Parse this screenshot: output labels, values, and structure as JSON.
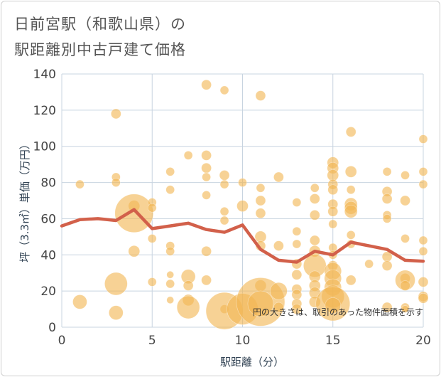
{
  "title": {
    "line1": "日前宮駅（和歌山県）の",
    "line2": "駅距離別中古戸建て価格"
  },
  "chart_data": {
    "type": "scatter",
    "xlabel": "駅距離（分）",
    "ylabel": "坪（3.3㎡）単価（万円）",
    "xlim": [
      0,
      20
    ],
    "ylim": [
      0,
      140
    ],
    "xticks": [
      0,
      5,
      10,
      15,
      20
    ],
    "yticks": [
      0,
      20,
      40,
      60,
      80,
      100,
      120,
      140
    ],
    "xtick_labels": [
      "0",
      "5",
      "10",
      "15",
      "20"
    ],
    "ytick_labels": [
      "0",
      "20",
      "40",
      "60",
      "80",
      "100",
      "120",
      "140"
    ],
    "note": "円の大きさは、取引のあった物件面積を示す",
    "colors": {
      "bubble": "#f2b654",
      "line": "#d2604a",
      "grid": "#c8d4e0"
    },
    "average_line": {
      "x": [
        0,
        1,
        2,
        3,
        4,
        5,
        6,
        7,
        8,
        9,
        10,
        11,
        12,
        13,
        14,
        15,
        16,
        17,
        18,
        19,
        20
      ],
      "y": [
        56,
        59.5,
        60,
        59,
        65,
        54.5,
        56,
        57.5,
        54,
        52.5,
        56.5,
        43,
        37,
        36,
        42,
        40,
        47,
        45,
        43,
        37,
        36.5
      ]
    },
    "points": [
      {
        "x": 1,
        "y": 79,
        "s": 6
      },
      {
        "x": 1,
        "y": 14,
        "s": 10
      },
      {
        "x": 3,
        "y": 118,
        "s": 7
      },
      {
        "x": 3,
        "y": 83,
        "s": 6
      },
      {
        "x": 3,
        "y": 80,
        "s": 6
      },
      {
        "x": 3,
        "y": 24,
        "s": 16
      },
      {
        "x": 3,
        "y": 8,
        "s": 10
      },
      {
        "x": 4,
        "y": 67,
        "s": 8
      },
      {
        "x": 4,
        "y": 63,
        "s": 27
      },
      {
        "x": 4,
        "y": 42,
        "s": 8
      },
      {
        "x": 5,
        "y": 69,
        "s": 6
      },
      {
        "x": 5,
        "y": 66,
        "s": 6
      },
      {
        "x": 5,
        "y": 49,
        "s": 6
      },
      {
        "x": 5,
        "y": 25,
        "s": 6
      },
      {
        "x": 6,
        "y": 86,
        "s": 6
      },
      {
        "x": 6,
        "y": 76,
        "s": 6
      },
      {
        "x": 6,
        "y": 45,
        "s": 6
      },
      {
        "x": 6,
        "y": 42,
        "s": 6
      },
      {
        "x": 6,
        "y": 29,
        "s": 5
      },
      {
        "x": 6,
        "y": 24,
        "s": 6
      },
      {
        "x": 6,
        "y": 15,
        "s": 5
      },
      {
        "x": 7,
        "y": 95,
        "s": 6
      },
      {
        "x": 7,
        "y": 28,
        "s": 10
      },
      {
        "x": 7,
        "y": 23,
        "s": 7
      },
      {
        "x": 7,
        "y": 15,
        "s": 8
      },
      {
        "x": 7,
        "y": 11,
        "s": 16
      },
      {
        "x": 8,
        "y": 134,
        "s": 7
      },
      {
        "x": 8,
        "y": 95,
        "s": 7
      },
      {
        "x": 8,
        "y": 88,
        "s": 7
      },
      {
        "x": 8,
        "y": 83,
        "s": 6
      },
      {
        "x": 8,
        "y": 73,
        "s": 6
      },
      {
        "x": 8,
        "y": 42,
        "s": 7
      },
      {
        "x": 8,
        "y": 26,
        "s": 7
      },
      {
        "x": 9,
        "y": 131,
        "s": 6
      },
      {
        "x": 9,
        "y": 84,
        "s": 7
      },
      {
        "x": 9,
        "y": 79,
        "s": 6
      },
      {
        "x": 9,
        "y": 64,
        "s": 6
      },
      {
        "x": 9,
        "y": 59,
        "s": 6
      },
      {
        "x": 9,
        "y": 10,
        "s": 6
      },
      {
        "x": 9,
        "y": 9,
        "s": 26
      },
      {
        "x": 10,
        "y": 80,
        "s": 6
      },
      {
        "x": 10,
        "y": 67,
        "s": 8
      },
      {
        "x": 10,
        "y": 10,
        "s": 22
      },
      {
        "x": 11,
        "y": 128,
        "s": 7
      },
      {
        "x": 11,
        "y": 77,
        "s": 6
      },
      {
        "x": 11,
        "y": 70,
        "s": 7
      },
      {
        "x": 11,
        "y": 63,
        "s": 7
      },
      {
        "x": 11,
        "y": 50,
        "s": 8
      },
      {
        "x": 11,
        "y": 45,
        "s": 7
      },
      {
        "x": 11,
        "y": 23,
        "s": 8
      },
      {
        "x": 11,
        "y": 14,
        "s": 34
      },
      {
        "x": 11,
        "y": 13,
        "s": 18
      },
      {
        "x": 12,
        "y": 83,
        "s": 7
      },
      {
        "x": 12,
        "y": 45,
        "s": 7
      },
      {
        "x": 12,
        "y": 20,
        "s": 12
      },
      {
        "x": 12,
        "y": 11,
        "s": 7
      },
      {
        "x": 13,
        "y": 69,
        "s": 6
      },
      {
        "x": 13,
        "y": 53,
        "s": 6
      },
      {
        "x": 13,
        "y": 46,
        "s": 6
      },
      {
        "x": 13,
        "y": 35,
        "s": 7
      },
      {
        "x": 13,
        "y": 29,
        "s": 7
      },
      {
        "x": 13,
        "y": 21,
        "s": 7
      },
      {
        "x": 13,
        "y": 18,
        "s": 7
      },
      {
        "x": 13,
        "y": 13,
        "s": 7
      },
      {
        "x": 13,
        "y": 10,
        "s": 7
      },
      {
        "x": 14,
        "y": 77,
        "s": 6
      },
      {
        "x": 14,
        "y": 71,
        "s": 7
      },
      {
        "x": 14,
        "y": 62,
        "s": 7
      },
      {
        "x": 14,
        "y": 48,
        "s": 7
      },
      {
        "x": 14,
        "y": 42,
        "s": 8
      },
      {
        "x": 14,
        "y": 34,
        "s": 16
      },
      {
        "x": 14,
        "y": 28,
        "s": 8
      },
      {
        "x": 14,
        "y": 23,
        "s": 8
      },
      {
        "x": 14,
        "y": 19,
        "s": 8
      },
      {
        "x": 14,
        "y": 14,
        "s": 8
      },
      {
        "x": 15,
        "y": 91,
        "s": 8
      },
      {
        "x": 15,
        "y": 88,
        "s": 8
      },
      {
        "x": 15,
        "y": 84,
        "s": 8
      },
      {
        "x": 15,
        "y": 79,
        "s": 7
      },
      {
        "x": 15,
        "y": 76,
        "s": 7
      },
      {
        "x": 15,
        "y": 68,
        "s": 7
      },
      {
        "x": 15,
        "y": 64,
        "s": 7
      },
      {
        "x": 15,
        "y": 57,
        "s": 6
      },
      {
        "x": 15,
        "y": 44,
        "s": 6
      },
      {
        "x": 15,
        "y": 40,
        "s": 6
      },
      {
        "x": 15,
        "y": 34,
        "s": 7
      },
      {
        "x": 15,
        "y": 31,
        "s": 12
      },
      {
        "x": 15,
        "y": 27,
        "s": 12
      },
      {
        "x": 15,
        "y": 22,
        "s": 12
      },
      {
        "x": 15,
        "y": 17,
        "s": 16
      },
      {
        "x": 15,
        "y": 13,
        "s": 24
      },
      {
        "x": 15,
        "y": 12,
        "s": 11
      },
      {
        "x": 16,
        "y": 108,
        "s": 7
      },
      {
        "x": 16,
        "y": 86,
        "s": 8
      },
      {
        "x": 16,
        "y": 76,
        "s": 6
      },
      {
        "x": 16,
        "y": 68,
        "s": 9
      },
      {
        "x": 16,
        "y": 66,
        "s": 9
      },
      {
        "x": 16,
        "y": 64,
        "s": 9
      },
      {
        "x": 16,
        "y": 51,
        "s": 6
      },
      {
        "x": 16,
        "y": 46,
        "s": 6
      },
      {
        "x": 16,
        "y": 26,
        "s": 7
      },
      {
        "x": 17,
        "y": 35,
        "s": 6
      },
      {
        "x": 18,
        "y": 86,
        "s": 6
      },
      {
        "x": 18,
        "y": 75,
        "s": 7
      },
      {
        "x": 18,
        "y": 71,
        "s": 7
      },
      {
        "x": 18,
        "y": 62,
        "s": 6
      },
      {
        "x": 18,
        "y": 60,
        "s": 6
      },
      {
        "x": 18,
        "y": 39,
        "s": 7
      },
      {
        "x": 18,
        "y": 34,
        "s": 7
      },
      {
        "x": 18,
        "y": 11,
        "s": 7
      },
      {
        "x": 19,
        "y": 84,
        "s": 6
      },
      {
        "x": 19,
        "y": 70,
        "s": 7
      },
      {
        "x": 19,
        "y": 49,
        "s": 6
      },
      {
        "x": 19,
        "y": 27,
        "s": 7
      },
      {
        "x": 19,
        "y": 26,
        "s": 14
      },
      {
        "x": 19,
        "y": 23,
        "s": 7
      },
      {
        "x": 19,
        "y": 11,
        "s": 6
      },
      {
        "x": 19,
        "y": 10,
        "s": 5
      },
      {
        "x": 20,
        "y": 104,
        "s": 6
      },
      {
        "x": 20,
        "y": 86,
        "s": 6
      },
      {
        "x": 20,
        "y": 79,
        "s": 6
      },
      {
        "x": 20,
        "y": 48,
        "s": 6
      },
      {
        "x": 20,
        "y": 42,
        "s": 6
      },
      {
        "x": 20,
        "y": 25,
        "s": 7
      },
      {
        "x": 20,
        "y": 17,
        "s": 7
      },
      {
        "x": 20,
        "y": 16,
        "s": 7
      }
    ]
  }
}
